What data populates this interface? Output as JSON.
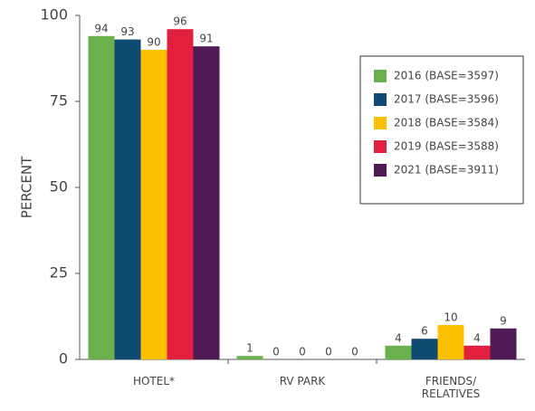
{
  "chart_data": {
    "type": "bar",
    "y_axis_label": "PERCENT",
    "categories": [
      "HOTEL*",
      "RV PARK",
      "FRIENDS/\nRELATIVES"
    ],
    "series": [
      {
        "name": "2016 (BASE=3597)",
        "color": "#6ab04c",
        "values": [
          94,
          1,
          4
        ]
      },
      {
        "name": "2017 (BASE=3596)",
        "color": "#0e4a72",
        "values": [
          93,
          0,
          6
        ]
      },
      {
        "name": "2018 (BASE=3584)",
        "color": "#fcc000",
        "values": [
          90,
          0,
          10
        ]
      },
      {
        "name": "2019 (BASE=3588)",
        "color": "#e21f3e",
        "values": [
          96,
          0,
          4
        ]
      },
      {
        "name": "2021 (BASE=3911)",
        "color": "#4f1a55",
        "values": [
          91,
          0,
          9
        ]
      }
    ],
    "ylim": [
      0,
      100
    ],
    "yticks": [
      0,
      25,
      50,
      75,
      100
    ],
    "legend": "upper right"
  }
}
